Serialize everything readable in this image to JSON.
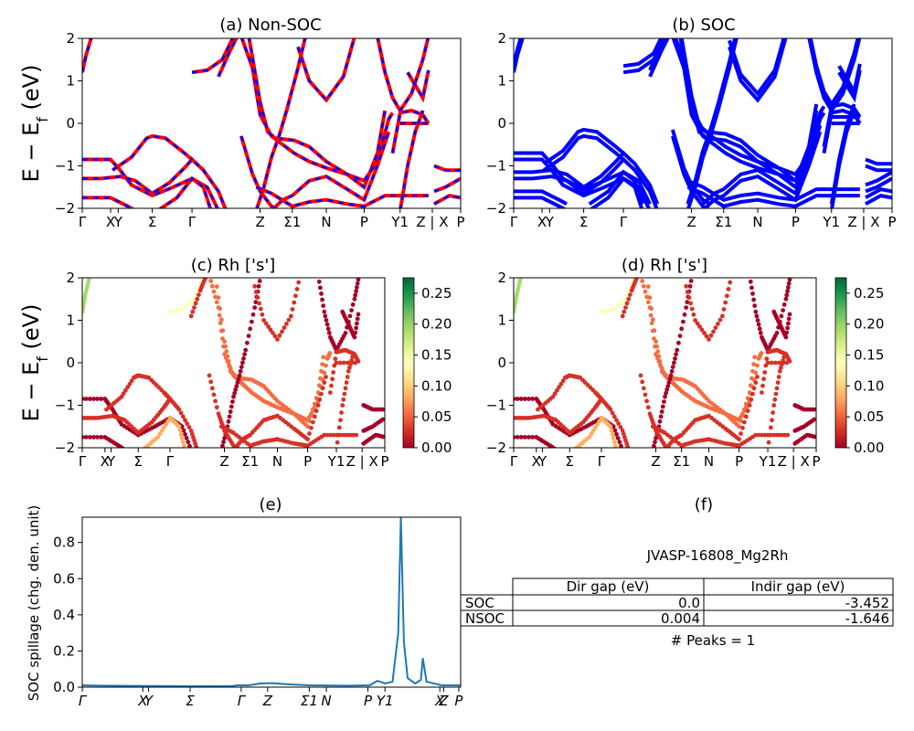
{
  "colors": {
    "blue": "#0000ff",
    "red": "#ff0000",
    "spill": "#1f77b4",
    "cmap": [
      "#a50026",
      "#d73027",
      "#f46d43",
      "#fdae61",
      "#fee08b",
      "#ffffbf",
      "#d9ef8b",
      "#a6d96a",
      "#66bd63",
      "#1a9850",
      "#006837"
    ]
  },
  "kpath": [
    "Γ",
    "X",
    "Y",
    "Σ",
    "Γ",
    "Z",
    "Σ1",
    "N",
    "P",
    "Y1",
    "Z | X",
    "P"
  ],
  "band_panels": [
    {
      "title": "(a) Non-SOC",
      "ylabel": "E − E_f (eV)",
      "ylim": [
        -2,
        2
      ],
      "yticks": [
        "2",
        "1",
        "0",
        "−1",
        "−2"
      ],
      "style": "nsoc-overlay"
    },
    {
      "title": "(b) SOC",
      "ylabel": "",
      "ylim": [
        -2,
        2
      ],
      "yticks": [
        "2",
        "1",
        "0",
        "−1",
        "−2"
      ],
      "style": "soc"
    },
    {
      "title": "(c)  Rh ['s']",
      "ylabel": "E − E_f (eV)",
      "ylim": [
        -2,
        2
      ],
      "yticks": [
        "2",
        "1",
        "0",
        "−1",
        "−2"
      ],
      "style": "projected"
    },
    {
      "title": "(d) Rh ['s']",
      "ylabel": "",
      "ylim": [
        -2,
        2
      ],
      "yticks": [
        "2",
        "1",
        "0",
        "−1",
        "−2"
      ],
      "style": "projected"
    }
  ],
  "colorbar": {
    "ticks": [
      "0.25",
      "0.20",
      "0.15",
      "0.10",
      "0.05",
      "0.00"
    ],
    "range": [
      0,
      0.275
    ]
  },
  "chart_data": [
    {
      "type": "line",
      "title": "(a) Non-SOC",
      "ylabel": "E − E_f (eV)",
      "ylim": [
        -2,
        2
      ],
      "x_tick_labels": [
        "Γ",
        "X",
        "Y",
        "Σ",
        "Γ",
        "Z",
        "Σ1",
        "N",
        "P",
        "Y1",
        "Z | X",
        "P"
      ]
    },
    {
      "type": "line",
      "title": "(b) SOC",
      "ylim": [
        -2,
        2
      ],
      "x_tick_labels": [
        "Γ",
        "X",
        "Y",
        "Σ",
        "Γ",
        "Z",
        "Σ1",
        "N",
        "P",
        "Y1",
        "Z | X",
        "P"
      ]
    },
    {
      "type": "scatter",
      "title": "(c)  Rh ['s']",
      "ylim": [
        -2,
        2
      ],
      "colorbar_range": [
        0,
        0.275
      ]
    },
    {
      "type": "scatter",
      "title": "(d) Rh ['s']",
      "ylim": [
        -2,
        2
      ],
      "colorbar_range": [
        0,
        0.275
      ]
    },
    {
      "type": "line",
      "title": "(e)",
      "ylabel": "SOC spillage (chg. den. unit)",
      "ylim": [
        0,
        0.94
      ],
      "yticks": [
        "0.0",
        "0.2",
        "0.4",
        "0.6",
        "0.8"
      ],
      "x_tick_labels": [
        "Γ",
        "X",
        "Y",
        "Σ",
        "Γ",
        "Z",
        "Σ1",
        "N",
        "P",
        "Y1",
        "X",
        "Z",
        "P"
      ],
      "series": [
        {
          "points": [
            [
              0,
              0.01
            ],
            [
              0.05,
              0.008
            ],
            [
              0.3,
              0.005
            ],
            [
              0.4,
              0.006
            ],
            [
              0.4,
              0.007
            ],
            [
              0.41,
              0.01
            ],
            [
              0.44,
              0.01
            ],
            [
              0.47,
              0.02
            ],
            [
              0.5,
              0.022
            ],
            [
              0.55,
              0.015
            ],
            [
              0.6,
              0.01
            ],
            [
              0.7,
              0.008
            ],
            [
              0.76,
              0.01
            ],
            [
              0.78,
              0.035
            ],
            [
              0.8,
              0.02
            ],
            [
              0.82,
              0.03
            ],
            [
              0.835,
              0.3
            ],
            [
              0.842,
              0.94
            ],
            [
              0.85,
              0.25
            ],
            [
              0.86,
              0.05
            ],
            [
              0.88,
              0.02
            ],
            [
              0.895,
              0.04
            ],
            [
              0.9,
              0.16
            ],
            [
              0.91,
              0.03
            ],
            [
              0.95,
              0.01
            ],
            [
              1,
              0.01
            ]
          ]
        }
      ]
    }
  ],
  "table": {
    "title": "(f)",
    "material": "JVASP-16808_Mg2Rh",
    "header": [
      "",
      "Dir gap (eV)",
      "Indir gap (eV)"
    ],
    "rows": [
      [
        "SOC",
        "0.0",
        "-3.452"
      ],
      [
        "NSOC",
        "0.004",
        "-1.646"
      ]
    ],
    "peaks": "# Peaks = 1"
  }
}
